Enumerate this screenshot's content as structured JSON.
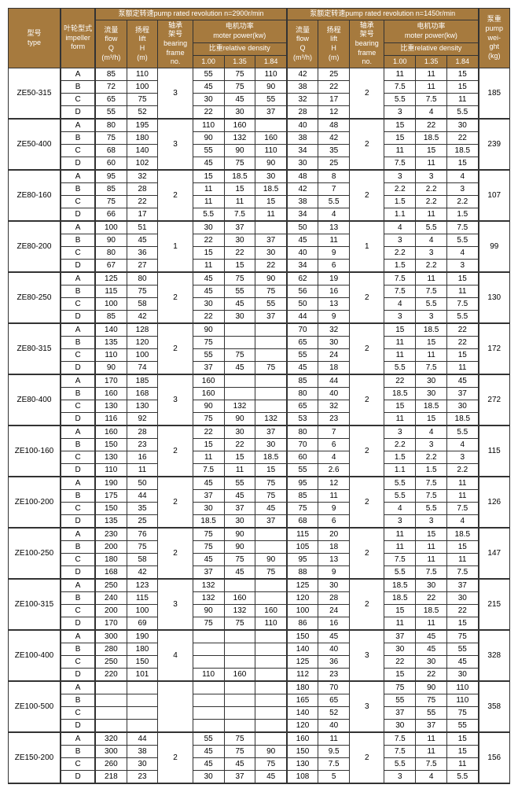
{
  "header": {
    "type": "型号\ntype",
    "impeller": "叶轮型式\nimpeller\nform",
    "rev2900": "泵额定转速pump rated revolution  n=2900r/min",
    "rev1450": "泵额定转速pump rated revolution  n=1450r/min",
    "flow": "流量\nflow\nQ\n(m³/h)",
    "lift": "扬程\nlift\nH\n(m)",
    "bearing": "轴承\n架号\nbearing\nframe\nno.",
    "motor": "电机功率\nmoter power(kw)",
    "density": "比重relative density",
    "d100": "1.00",
    "d135": "1.35",
    "d184": "1.84",
    "weight": "泵重\npump\nwei-\nght\n(kg)"
  },
  "groups": [
    {
      "type": "ZE50-315",
      "bearing2900": "3",
      "bearing1450": "2",
      "weight": "185",
      "rows": [
        {
          "imp": "A",
          "q1": "85",
          "h1": "110",
          "p11": "55",
          "p12": "75",
          "p13": "110",
          "q2": "42",
          "h2": "25",
          "p21": "11",
          "p22": "11",
          "p23": "15"
        },
        {
          "imp": "B",
          "q1": "72",
          "h1": "100",
          "p11": "45",
          "p12": "75",
          "p13": "90",
          "q2": "38",
          "h2": "22",
          "p21": "7.5",
          "p22": "11",
          "p23": "15"
        },
        {
          "imp": "C",
          "q1": "65",
          "h1": "75",
          "p11": "30",
          "p12": "45",
          "p13": "55",
          "q2": "32",
          "h2": "17",
          "p21": "5.5",
          "p22": "7.5",
          "p23": "11"
        },
        {
          "imp": "D",
          "q1": "55",
          "h1": "52",
          "p11": "22",
          "p12": "30",
          "p13": "37",
          "q2": "28",
          "h2": "12",
          "p21": "3",
          "p22": "4",
          "p23": "5.5"
        }
      ]
    },
    {
      "type": "ZE50-400",
      "bearing2900": "3",
      "bearing1450": "2",
      "weight": "239",
      "rows": [
        {
          "imp": "A",
          "q1": "80",
          "h1": "195",
          "p11": "110",
          "p12": "160",
          "p13": "",
          "q2": "40",
          "h2": "48",
          "p21": "15",
          "p22": "22",
          "p23": "30"
        },
        {
          "imp": "B",
          "q1": "75",
          "h1": "180",
          "p11": "90",
          "p12": "132",
          "p13": "160",
          "q2": "38",
          "h2": "42",
          "p21": "15",
          "p22": "18.5",
          "p23": "22"
        },
        {
          "imp": "C",
          "q1": "68",
          "h1": "140",
          "p11": "55",
          "p12": "90",
          "p13": "110",
          "q2": "34",
          "h2": "35",
          "p21": "11",
          "p22": "15",
          "p23": "18.5"
        },
        {
          "imp": "D",
          "q1": "60",
          "h1": "102",
          "p11": "45",
          "p12": "75",
          "p13": "90",
          "q2": "30",
          "h2": "25",
          "p21": "7.5",
          "p22": "11",
          "p23": "15"
        }
      ]
    },
    {
      "type": "ZE80-160",
      "bearing2900": "2",
      "bearing1450": "2",
      "weight": "107",
      "rows": [
        {
          "imp": "A",
          "q1": "95",
          "h1": "32",
          "p11": "15",
          "p12": "18.5",
          "p13": "30",
          "q2": "48",
          "h2": "8",
          "p21": "3",
          "p22": "3",
          "p23": "4"
        },
        {
          "imp": "B",
          "q1": "85",
          "h1": "28",
          "p11": "11",
          "p12": "15",
          "p13": "18.5",
          "q2": "42",
          "h2": "7",
          "p21": "2.2",
          "p22": "2.2",
          "p23": "3"
        },
        {
          "imp": "C",
          "q1": "75",
          "h1": "22",
          "p11": "11",
          "p12": "11",
          "p13": "15",
          "q2": "38",
          "h2": "5.5",
          "p21": "1.5",
          "p22": "2.2",
          "p23": "2.2"
        },
        {
          "imp": "D",
          "q1": "66",
          "h1": "17",
          "p11": "5.5",
          "p12": "7.5",
          "p13": "11",
          "q2": "34",
          "h2": "4",
          "p21": "1.1",
          "p22": "11",
          "p23": "1.5"
        }
      ]
    },
    {
      "type": "ZE80-200",
      "bearing2900": "1",
      "bearing1450": "1",
      "weight": "99",
      "rows": [
        {
          "imp": "A",
          "q1": "100",
          "h1": "51",
          "p11": "30",
          "p12": "37",
          "p13": "",
          "q2": "50",
          "h2": "13",
          "p21": "4",
          "p22": "5.5",
          "p23": "7.5"
        },
        {
          "imp": "B",
          "q1": "90",
          "h1": "45",
          "p11": "22",
          "p12": "30",
          "p13": "37",
          "q2": "45",
          "h2": "11",
          "p21": "3",
          "p22": "4",
          "p23": "5.5"
        },
        {
          "imp": "C",
          "q1": "80",
          "h1": "36",
          "p11": "15",
          "p12": "22",
          "p13": "30",
          "q2": "40",
          "h2": "9",
          "p21": "2.2",
          "p22": "3",
          "p23": "4"
        },
        {
          "imp": "D",
          "q1": "67",
          "h1": "27",
          "p11": "11",
          "p12": "15",
          "p13": "22",
          "q2": "34",
          "h2": "6",
          "p21": "1.5",
          "p22": "2.2",
          "p23": "3"
        }
      ]
    },
    {
      "type": "ZE80-250",
      "bearing2900": "2",
      "bearing1450": "2",
      "weight": "130",
      "rows": [
        {
          "imp": "A",
          "q1": "125",
          "h1": "80",
          "p11": "45",
          "p12": "75",
          "p13": "90",
          "q2": "62",
          "h2": "19",
          "p21": "7.5",
          "p22": "11",
          "p23": "15"
        },
        {
          "imp": "B",
          "q1": "115",
          "h1": "75",
          "p11": "45",
          "p12": "55",
          "p13": "75",
          "q2": "56",
          "h2": "16",
          "p21": "7.5",
          "p22": "7.5",
          "p23": "11"
        },
        {
          "imp": "C",
          "q1": "100",
          "h1": "58",
          "p11": "30",
          "p12": "45",
          "p13": "55",
          "q2": "50",
          "h2": "13",
          "p21": "4",
          "p22": "5.5",
          "p23": "7.5"
        },
        {
          "imp": "D",
          "q1": "85",
          "h1": "42",
          "p11": "22",
          "p12": "30",
          "p13": "37",
          "q2": "44",
          "h2": "9",
          "p21": "3",
          "p22": "3",
          "p23": "5.5"
        }
      ]
    },
    {
      "type": "ZE80-315",
      "bearing2900": "2",
      "bearing1450": "2",
      "weight": "172",
      "rows": [
        {
          "imp": "A",
          "q1": "140",
          "h1": "128",
          "p11": "90",
          "p12": "",
          "p13": "",
          "q2": "70",
          "h2": "32",
          "p21": "15",
          "p22": "18.5",
          "p23": "22"
        },
        {
          "imp": "B",
          "q1": "135",
          "h1": "120",
          "p11": "75",
          "p12": "",
          "p13": "",
          "q2": "65",
          "h2": "30",
          "p21": "11",
          "p22": "15",
          "p23": "22"
        },
        {
          "imp": "C",
          "q1": "110",
          "h1": "100",
          "p11": "55",
          "p12": "75",
          "p13": "",
          "q2": "55",
          "h2": "24",
          "p21": "11",
          "p22": "11",
          "p23": "15"
        },
        {
          "imp": "D",
          "q1": "90",
          "h1": "74",
          "p11": "37",
          "p12": "45",
          "p13": "75",
          "q2": "45",
          "h2": "18",
          "p21": "5.5",
          "p22": "7.5",
          "p23": "11"
        }
      ]
    },
    {
      "type": "ZE80-400",
      "bearing2900": "3",
      "bearing1450": "2",
      "weight": "272",
      "rows": [
        {
          "imp": "A",
          "q1": "170",
          "h1": "185",
          "p11": "160",
          "p12": "",
          "p13": "",
          "q2": "85",
          "h2": "44",
          "p21": "22",
          "p22": "30",
          "p23": "45"
        },
        {
          "imp": "B",
          "q1": "160",
          "h1": "168",
          "p11": "160",
          "p12": "",
          "p13": "",
          "q2": "80",
          "h2": "40",
          "p21": "18.5",
          "p22": "30",
          "p23": "37"
        },
        {
          "imp": "C",
          "q1": "130",
          "h1": "130",
          "p11": "90",
          "p12": "132",
          "p13": "",
          "q2": "65",
          "h2": "32",
          "p21": "15",
          "p22": "18.5",
          "p23": "30"
        },
        {
          "imp": "D",
          "q1": "116",
          "h1": "92",
          "p11": "75",
          "p12": "90",
          "p13": "132",
          "q2": "53",
          "h2": "23",
          "p21": "11",
          "p22": "15",
          "p23": "18.5"
        }
      ]
    },
    {
      "type": "ZE100-160",
      "bearing2900": "2",
      "bearing1450": "2",
      "weight": "115",
      "rows": [
        {
          "imp": "A",
          "q1": "160",
          "h1": "28",
          "p11": "22",
          "p12": "30",
          "p13": "37",
          "q2": "80",
          "h2": "7",
          "p21": "3",
          "p22": "4",
          "p23": "5.5"
        },
        {
          "imp": "B",
          "q1": "150",
          "h1": "23",
          "p11": "15",
          "p12": "22",
          "p13": "30",
          "q2": "70",
          "h2": "6",
          "p21": "2.2",
          "p22": "3",
          "p23": "4"
        },
        {
          "imp": "C",
          "q1": "130",
          "h1": "16",
          "p11": "11",
          "p12": "15",
          "p13": "18.5",
          "q2": "60",
          "h2": "4",
          "p21": "1.5",
          "p22": "2.2",
          "p23": "3"
        },
        {
          "imp": "D",
          "q1": "110",
          "h1": "11",
          "p11": "7.5",
          "p12": "11",
          "p13": "15",
          "q2": "55",
          "h2": "2.6",
          "p21": "1.1",
          "p22": "1.5",
          "p23": "2.2"
        }
      ]
    },
    {
      "type": "ZE100-200",
      "bearing2900": "2",
      "bearing1450": "2",
      "weight": "126",
      "rows": [
        {
          "imp": "A",
          "q1": "190",
          "h1": "50",
          "p11": "45",
          "p12": "55",
          "p13": "75",
          "q2": "95",
          "h2": "12",
          "p21": "5.5",
          "p22": "7.5",
          "p23": "11"
        },
        {
          "imp": "B",
          "q1": "175",
          "h1": "44",
          "p11": "37",
          "p12": "45",
          "p13": "75",
          "q2": "85",
          "h2": "11",
          "p21": "5.5",
          "p22": "7.5",
          "p23": "11"
        },
        {
          "imp": "C",
          "q1": "150",
          "h1": "35",
          "p11": "30",
          "p12": "37",
          "p13": "45",
          "q2": "75",
          "h2": "9",
          "p21": "4",
          "p22": "5.5",
          "p23": "7.5"
        },
        {
          "imp": "D",
          "q1": "135",
          "h1": "25",
          "p11": "18.5",
          "p12": "30",
          "p13": "37",
          "q2": "68",
          "h2": "6",
          "p21": "3",
          "p22": "3",
          "p23": "4"
        }
      ]
    },
    {
      "type": "ZE100-250",
      "bearing2900": "2",
      "bearing1450": "2",
      "weight": "147",
      "rows": [
        {
          "imp": "A",
          "q1": "230",
          "h1": "76",
          "p11": "75",
          "p12": "90",
          "p13": "",
          "q2": "115",
          "h2": "20",
          "p21": "11",
          "p22": "15",
          "p23": "18.5"
        },
        {
          "imp": "B",
          "q1": "200",
          "h1": "75",
          "p11": "75",
          "p12": "90",
          "p13": "",
          "q2": "105",
          "h2": "18",
          "p21": "11",
          "p22": "11",
          "p23": "15"
        },
        {
          "imp": "C",
          "q1": "180",
          "h1": "58",
          "p11": "45",
          "p12": "75",
          "p13": "90",
          "q2": "95",
          "h2": "13",
          "p21": "7.5",
          "p22": "11",
          "p23": "11"
        },
        {
          "imp": "D",
          "q1": "168",
          "h1": "42",
          "p11": "37",
          "p12": "45",
          "p13": "75",
          "q2": "88",
          "h2": "9",
          "p21": "5.5",
          "p22": "7.5",
          "p23": "7.5"
        }
      ]
    },
    {
      "type": "ZE100-315",
      "bearing2900": "3",
      "bearing1450": "2",
      "weight": "215",
      "rows": [
        {
          "imp": "A",
          "q1": "250",
          "h1": "123",
          "p11": "132",
          "p12": "",
          "p13": "",
          "q2": "125",
          "h2": "30",
          "p21": "18.5",
          "p22": "30",
          "p23": "37"
        },
        {
          "imp": "B",
          "q1": "240",
          "h1": "115",
          "p11": "132",
          "p12": "160",
          "p13": "",
          "q2": "120",
          "h2": "28",
          "p21": "18.5",
          "p22": "22",
          "p23": "30"
        },
        {
          "imp": "C",
          "q1": "200",
          "h1": "100",
          "p11": "90",
          "p12": "132",
          "p13": "160",
          "q2": "100",
          "h2": "24",
          "p21": "15",
          "p22": "18.5",
          "p23": "22"
        },
        {
          "imp": "D",
          "q1": "170",
          "h1": "69",
          "p11": "75",
          "p12": "75",
          "p13": "110",
          "q2": "86",
          "h2": "16",
          "p21": "11",
          "p22": "11",
          "p23": "15"
        }
      ]
    },
    {
      "type": "ZE100-400",
      "bearing2900": "4",
      "bearing1450": "3",
      "weight": "328",
      "rows": [
        {
          "imp": "A",
          "q1": "300",
          "h1": "190",
          "p11": "",
          "p12": "",
          "p13": "",
          "q2": "150",
          "h2": "45",
          "p21": "37",
          "p22": "45",
          "p23": "75"
        },
        {
          "imp": "B",
          "q1": "280",
          "h1": "180",
          "p11": "",
          "p12": "",
          "p13": "",
          "q2": "140",
          "h2": "40",
          "p21": "30",
          "p22": "45",
          "p23": "55"
        },
        {
          "imp": "C",
          "q1": "250",
          "h1": "150",
          "p11": "",
          "p12": "",
          "p13": "",
          "q2": "125",
          "h2": "36",
          "p21": "22",
          "p22": "30",
          "p23": "45"
        },
        {
          "imp": "D",
          "q1": "220",
          "h1": "101",
          "p11": "110",
          "p12": "160",
          "p13": "",
          "q2": "112",
          "h2": "23",
          "p21": "15",
          "p22": "22",
          "p23": "30"
        }
      ]
    },
    {
      "type": "ZE100-500",
      "bearing2900": "",
      "bearing1450": "3",
      "weight": "358",
      "rows": [
        {
          "imp": "A",
          "q1": "",
          "h1": "",
          "p11": "",
          "p12": "",
          "p13": "",
          "q2": "180",
          "h2": "70",
          "p21": "75",
          "p22": "90",
          "p23": "110"
        },
        {
          "imp": "B",
          "q1": "",
          "h1": "",
          "p11": "",
          "p12": "",
          "p13": "",
          "q2": "165",
          "h2": "65",
          "p21": "55",
          "p22": "75",
          "p23": "110"
        },
        {
          "imp": "C",
          "q1": "",
          "h1": "",
          "p11": "",
          "p12": "",
          "p13": "",
          "q2": "140",
          "h2": "52",
          "p21": "37",
          "p22": "55",
          "p23": "75"
        },
        {
          "imp": "D",
          "q1": "",
          "h1": "",
          "p11": "",
          "p12": "",
          "p13": "",
          "q2": "120",
          "h2": "40",
          "p21": "30",
          "p22": "37",
          "p23": "55"
        }
      ]
    },
    {
      "type": "ZE150-200",
      "bearing2900": "2",
      "bearing1450": "2",
      "weight": "156",
      "rows": [
        {
          "imp": "A",
          "q1": "320",
          "h1": "44",
          "p11": "55",
          "p12": "75",
          "p13": "",
          "q2": "160",
          "h2": "11",
          "p21": "7.5",
          "p22": "11",
          "p23": "15"
        },
        {
          "imp": "B",
          "q1": "300",
          "h1": "38",
          "p11": "45",
          "p12": "75",
          "p13": "90",
          "q2": "150",
          "h2": "9.5",
          "p21": "7.5",
          "p22": "11",
          "p23": "15"
        },
        {
          "imp": "C",
          "q1": "260",
          "h1": "30",
          "p11": "45",
          "p12": "45",
          "p13": "75",
          "q2": "130",
          "h2": "7.5",
          "p21": "5.5",
          "p22": "7.5",
          "p23": "11"
        },
        {
          "imp": "D",
          "q1": "218",
          "h1": "23",
          "p11": "30",
          "p12": "37",
          "p13": "45",
          "q2": "108",
          "h2": "5",
          "p21": "3",
          "p22": "4",
          "p23": "5.5"
        }
      ]
    }
  ]
}
